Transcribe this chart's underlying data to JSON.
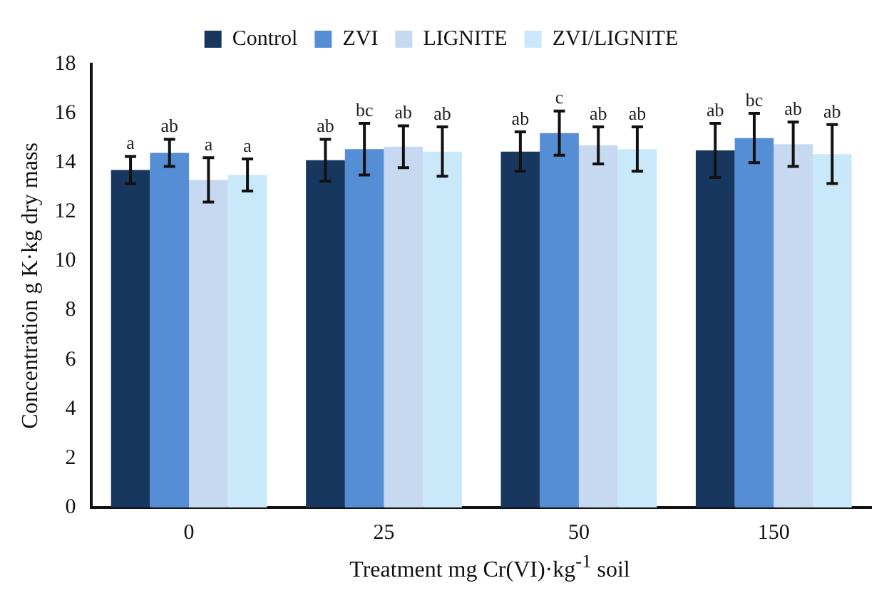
{
  "chart_data": {
    "type": "bar",
    "xlabel": "Treatment mg Cr(VI)·kg$^{-1}$ soil",
    "ylabel": "Concentration g K·kg dry mass",
    "categories": [
      "0",
      "25",
      "50",
      "150"
    ],
    "ylim": [
      0,
      18
    ],
    "yticks": [
      0,
      2,
      4,
      6,
      8,
      10,
      12,
      14,
      16,
      18
    ],
    "grid": false,
    "legend": "top",
    "series": [
      {
        "name": "Control",
        "color": "#17375e",
        "values": [
          13.7,
          14.1,
          14.45,
          14.5
        ],
        "errors": [
          0.55,
          0.85,
          0.8,
          1.1
        ],
        "value_labels": [
          "a",
          "ab",
          "ab",
          "ab"
        ]
      },
      {
        "name": "ZVI",
        "color": "#558ed5",
        "values": [
          14.4,
          14.55,
          15.2,
          15.0
        ],
        "errors": [
          0.55,
          1.05,
          0.9,
          1.0
        ],
        "value_labels": [
          "ab",
          "bc",
          "c",
          "bc"
        ]
      },
      {
        "name": "LIGNITE",
        "color": "#c6d9f1",
        "values": [
          13.3,
          14.65,
          14.7,
          14.75
        ],
        "errors": [
          0.9,
          0.85,
          0.75,
          0.9
        ],
        "value_labels": [
          "a",
          "ab",
          "ab",
          "ab"
        ]
      },
      {
        "name": "ZVI/LIGNITE",
        "color": "#c9e9fb",
        "values": [
          13.5,
          14.45,
          14.55,
          14.35
        ],
        "errors": [
          0.65,
          1.0,
          0.9,
          1.2
        ],
        "value_labels": [
          "a",
          "ab",
          "ab",
          "ab"
        ]
      }
    ]
  }
}
